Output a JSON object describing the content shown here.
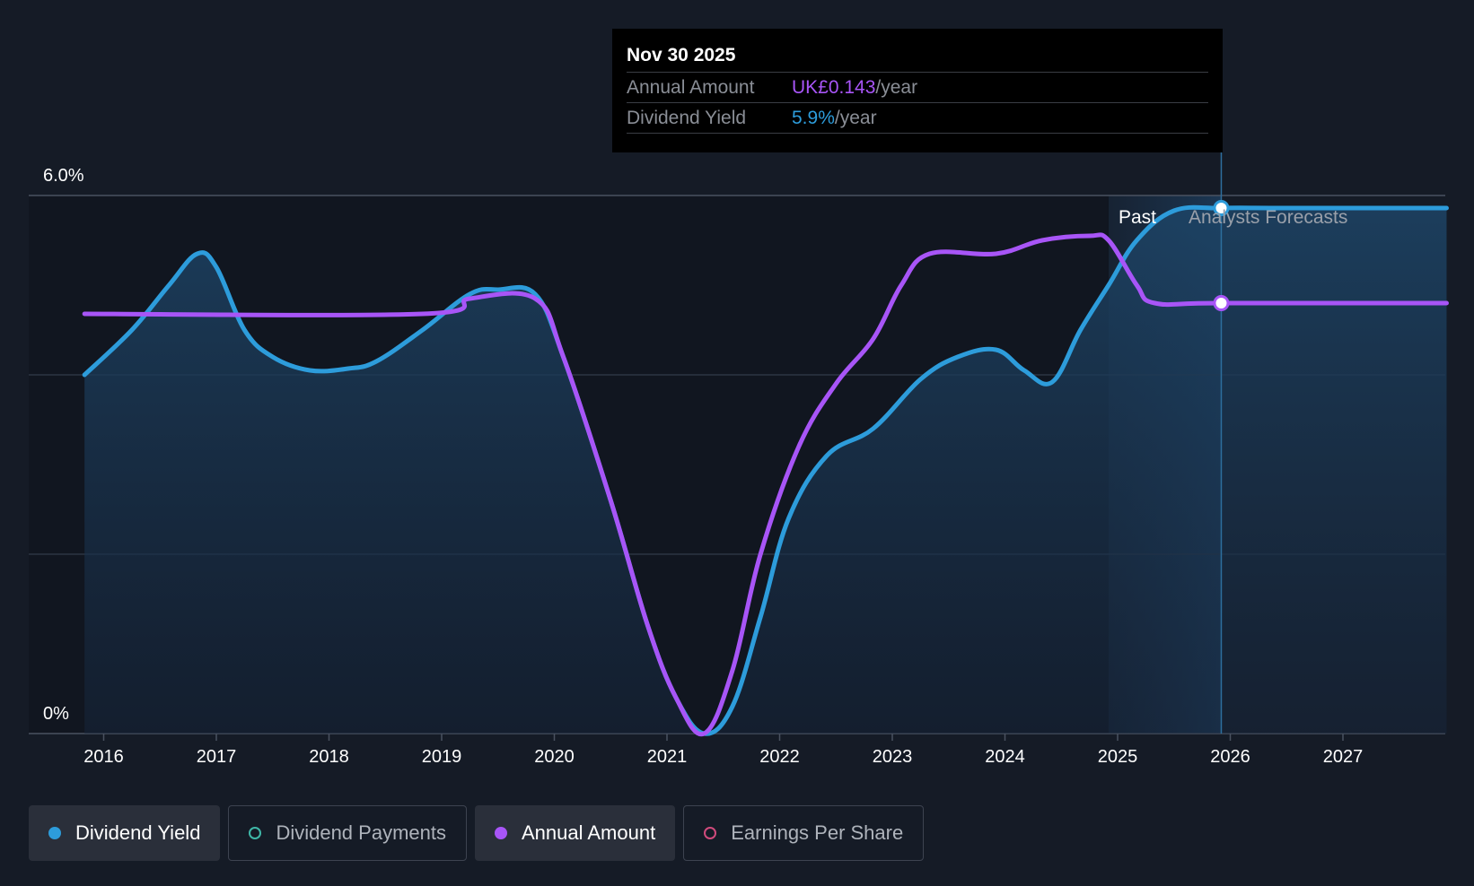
{
  "tooltip": {
    "date": "Nov 30 2025",
    "annual_label": "Annual Amount",
    "annual_value": "UK£0.143",
    "yield_label": "Dividend Yield",
    "yield_value": "5.9%",
    "unit": "/year"
  },
  "legend": [
    {
      "label": "Dividend Yield",
      "color": "#2d9cdb",
      "active": true,
      "filled": true
    },
    {
      "label": "Dividend Payments",
      "color": "#3fb7a8",
      "active": false,
      "filled": false
    },
    {
      "label": "Annual Amount",
      "color": "#a855f7",
      "active": true,
      "filled": true
    },
    {
      "label": "Earnings Per Share",
      "color": "#d04a7c",
      "active": false,
      "filled": false
    }
  ],
  "colors": {
    "background": "#151b26",
    "yield_line": "#2d9cdb",
    "amount_line": "#a855f7",
    "grid": "#2c3543",
    "tooltip_bg": "#000000"
  },
  "chart_data": {
    "type": "line",
    "y_tick_labels": [
      "6.0%",
      "0%"
    ],
    "ylim": [
      0,
      6.0
    ],
    "x_tick_labels": [
      "2016",
      "2017",
      "2018",
      "2019",
      "2020",
      "2021",
      "2022",
      "2023",
      "2024",
      "2025",
      "2026",
      "2027"
    ],
    "xlim": [
      2015.67,
      2027.92
    ],
    "region_labels": {
      "past": "Past",
      "forecast": "Analysts Forecasts"
    },
    "past_end": 2024.92,
    "forecast_start": 2025.5,
    "highlight_date": 2025.92,
    "grid": true,
    "series": [
      {
        "name": "Dividend Yield",
        "color": "#2d9cdb",
        "area": true,
        "points": [
          [
            2015.83,
            4.0
          ],
          [
            2016.25,
            4.5
          ],
          [
            2016.58,
            5.0
          ],
          [
            2016.83,
            5.35
          ],
          [
            2017.0,
            5.2
          ],
          [
            2017.25,
            4.5
          ],
          [
            2017.5,
            4.2
          ],
          [
            2017.83,
            4.05
          ],
          [
            2018.17,
            4.07
          ],
          [
            2018.42,
            4.15
          ],
          [
            2018.83,
            4.5
          ],
          [
            2019.25,
            4.9
          ],
          [
            2019.5,
            4.95
          ],
          [
            2019.83,
            4.9
          ],
          [
            2020.08,
            4.2
          ],
          [
            2020.5,
            2.6
          ],
          [
            2020.83,
            1.2
          ],
          [
            2021.08,
            0.4
          ],
          [
            2021.33,
            0.0
          ],
          [
            2021.58,
            0.3
          ],
          [
            2021.83,
            1.3
          ],
          [
            2022.08,
            2.4
          ],
          [
            2022.42,
            3.1
          ],
          [
            2022.83,
            3.4
          ],
          [
            2023.25,
            3.95
          ],
          [
            2023.58,
            4.2
          ],
          [
            2023.92,
            4.28
          ],
          [
            2024.17,
            4.05
          ],
          [
            2024.42,
            3.92
          ],
          [
            2024.67,
            4.5
          ],
          [
            2024.92,
            5.0
          ],
          [
            2025.17,
            5.5
          ],
          [
            2025.5,
            5.83
          ],
          [
            2025.92,
            5.86
          ],
          [
            2026.5,
            5.86
          ],
          [
            2027.92,
            5.86
          ]
        ]
      },
      {
        "name": "Annual Amount",
        "color": "#a855f7",
        "area": false,
        "points": [
          [
            2015.83,
            4.68
          ],
          [
            2018.83,
            4.68
          ],
          [
            2019.25,
            4.85
          ],
          [
            2019.83,
            4.85
          ],
          [
            2020.08,
            4.2
          ],
          [
            2020.5,
            2.6
          ],
          [
            2020.83,
            1.2
          ],
          [
            2021.08,
            0.4
          ],
          [
            2021.33,
            0.0
          ],
          [
            2021.58,
            0.7
          ],
          [
            2021.83,
            2.0
          ],
          [
            2022.17,
            3.2
          ],
          [
            2022.5,
            3.9
          ],
          [
            2022.83,
            4.4
          ],
          [
            2023.08,
            5.0
          ],
          [
            2023.33,
            5.35
          ],
          [
            2023.92,
            5.35
          ],
          [
            2024.33,
            5.5
          ],
          [
            2024.75,
            5.55
          ],
          [
            2024.92,
            5.5
          ],
          [
            2025.17,
            5.0
          ],
          [
            2025.33,
            4.8
          ],
          [
            2025.92,
            4.8
          ],
          [
            2027.92,
            4.8
          ]
        ]
      }
    ]
  }
}
